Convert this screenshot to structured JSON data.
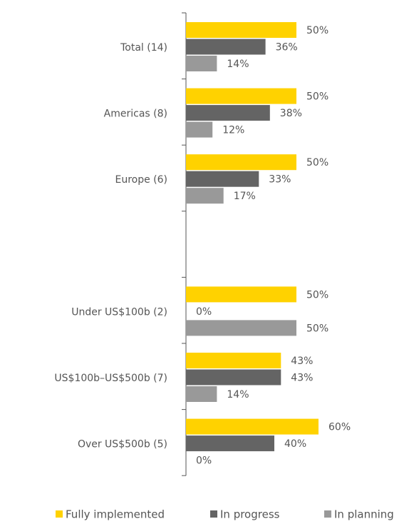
{
  "chart_data": {
    "type": "bar",
    "orientation": "horizontal",
    "categories": [
      "Total (14)",
      "Americas (8)",
      "Europe (6)",
      null,
      "Under US$100b (2)",
      "US$100b–US$500b (7)",
      "Over US$500b (5)"
    ],
    "series": [
      {
        "name": "Fully implemented",
        "color": "#ffd200",
        "values": [
          50,
          50,
          50,
          null,
          50,
          43,
          60
        ],
        "value_labels": [
          "50%",
          "50%",
          "50%",
          null,
          "50%",
          "43%",
          "60%"
        ]
      },
      {
        "name": "In progress",
        "color": "#646464",
        "values": [
          36,
          38,
          33,
          null,
          0,
          43,
          40
        ],
        "value_labels": [
          "36%",
          "38%",
          "33%",
          null,
          "0%",
          "43%",
          "40%"
        ]
      },
      {
        "name": "In planning",
        "color": "#999999",
        "values": [
          14,
          12,
          17,
          null,
          50,
          14,
          0
        ],
        "value_labels": [
          "14%",
          "12%",
          "17%",
          null,
          "50%",
          "14%",
          "0%"
        ]
      }
    ],
    "legend": "bottom"
  }
}
